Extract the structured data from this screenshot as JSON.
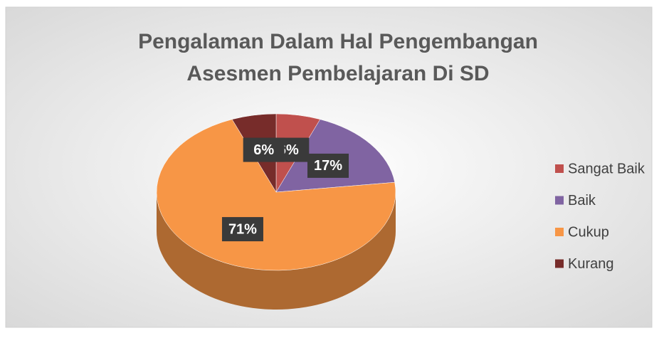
{
  "chart_data": {
    "type": "pie",
    "title": "Pengalaman Dalam Hal Pengembangan Asesmen Pembelajaran Di SD",
    "categories": [
      "Sangat Baik",
      "Baik",
      "Cukup",
      "Kurang"
    ],
    "values": [
      6,
      17,
      71,
      6
    ],
    "value_labels": [
      "6%",
      "17%",
      "71%",
      "6%"
    ],
    "colors": [
      "#c0504d",
      "#8064a2",
      "#f79646",
      "#772c2a"
    ],
    "legend": "right"
  }
}
